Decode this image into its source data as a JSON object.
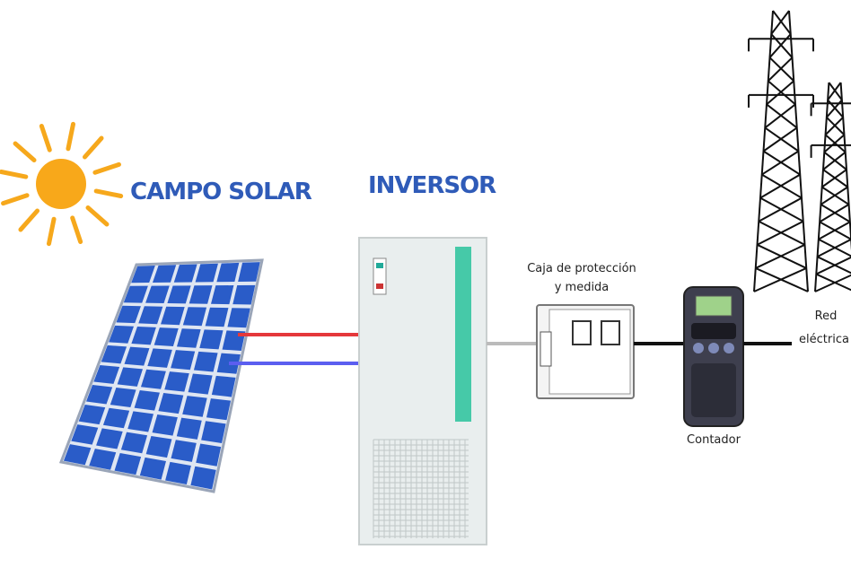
{
  "nodes": [
    {
      "label": "CAMPO SOLAR"
    },
    {
      "label": "INVERSOR"
    },
    {
      "label": [
        "Caja de protección",
        "y medida"
      ]
    },
    {
      "label": "Contador"
    },
    {
      "label": [
        "Red",
        "eléctrica"
      ]
    }
  ]
}
